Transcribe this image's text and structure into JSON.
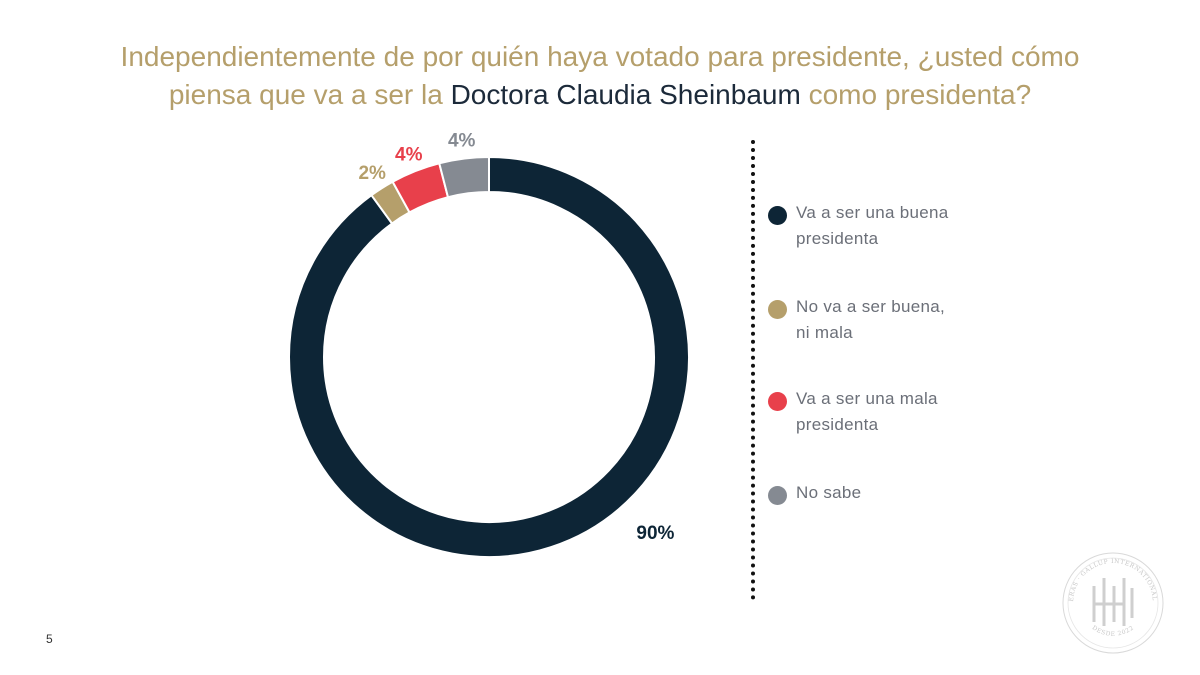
{
  "slide": {
    "title_part1": "Independientemente de por quién haya votado para presidente,",
    "title_part2": "¿usted cómo",
    "title_part3": "piensa que va a ser la",
    "title_highlight": "Doctora Claudia Sheinbaum",
    "title_part4": "como presidenta?",
    "page_number": "5",
    "seal_text_top": "DE LAS HERAS · GALLUP INTERNATIONAL MEMBER",
    "seal_text_bottom": "DESDE 2022"
  },
  "chart_data": {
    "type": "pie",
    "style": "donut",
    "categories": [
      "Va a ser una buena presidenta",
      "No va a ser buena, ni mala",
      "Va a ser una mala presidenta",
      "No sabe"
    ],
    "values": [
      90,
      2,
      4,
      4
    ],
    "data_labels": [
      "90%",
      "2%",
      "4%",
      "4%"
    ],
    "colors": [
      "#0d2536",
      "#b59f6b",
      "#e8404b",
      "#858a92"
    ],
    "label_colors": [
      "#0d2536",
      "#b59f6b",
      "#e8404b",
      "#858a92"
    ],
    "legend_placement": "right",
    "legend": [
      {
        "line1": "Va a ser una buena",
        "line2": "presidenta",
        "color": "#0d2536"
      },
      {
        "line1": "No va a ser buena,",
        "line2": "ni mala",
        "color": "#b59f6b"
      },
      {
        "line1": "Va a ser una mala",
        "line2": "presidenta",
        "color": "#e8404b"
      },
      {
        "line1": "No sabe",
        "line2": "",
        "color": "#858a92"
      }
    ]
  }
}
